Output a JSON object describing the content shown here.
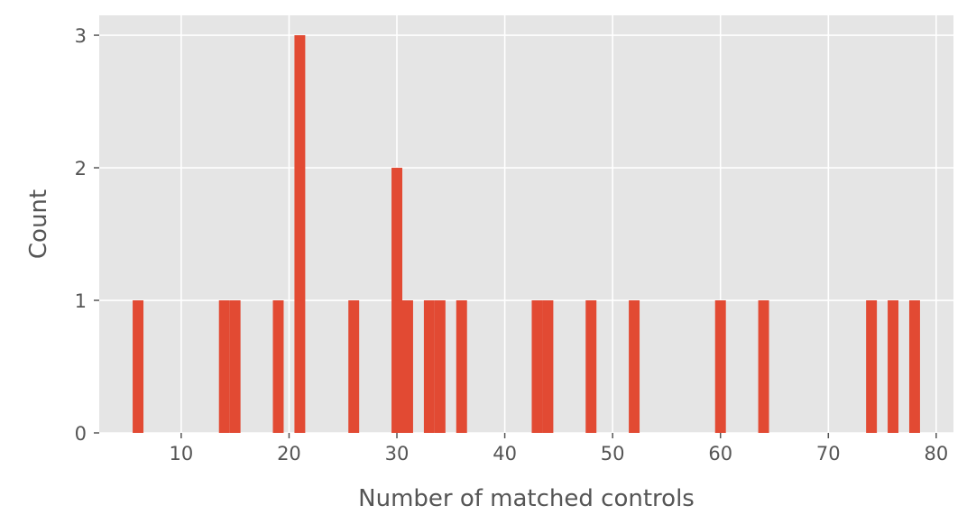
{
  "chart_data": {
    "type": "bar",
    "title": "",
    "xlabel": "Number of matched controls",
    "ylabel": "Count",
    "xlim": [
      2.4,
      81.6
    ],
    "ylim": [
      0,
      3.15
    ],
    "x_ticks": [
      10,
      20,
      30,
      40,
      50,
      60,
      70,
      80
    ],
    "y_ticks": [
      0,
      1,
      2,
      3
    ],
    "grid": true,
    "bin_width": 1,
    "bars": [
      {
        "x": 6,
        "count": 1
      },
      {
        "x": 14,
        "count": 1
      },
      {
        "x": 15,
        "count": 1
      },
      {
        "x": 19,
        "count": 1
      },
      {
        "x": 21,
        "count": 3
      },
      {
        "x": 26,
        "count": 1
      },
      {
        "x": 30,
        "count": 2
      },
      {
        "x": 31,
        "count": 1
      },
      {
        "x": 33,
        "count": 1
      },
      {
        "x": 34,
        "count": 1
      },
      {
        "x": 36,
        "count": 1
      },
      {
        "x": 43,
        "count": 1
      },
      {
        "x": 44,
        "count": 1
      },
      {
        "x": 48,
        "count": 1
      },
      {
        "x": 52,
        "count": 1
      },
      {
        "x": 60,
        "count": 1
      },
      {
        "x": 64,
        "count": 1
      },
      {
        "x": 74,
        "count": 1
      },
      {
        "x": 76,
        "count": 1
      },
      {
        "x": 78,
        "count": 1
      }
    ],
    "colors": {
      "bar": "#e24a33",
      "plot_background": "#e5e5e5",
      "grid": "#ffffff",
      "text": "#555555"
    }
  }
}
